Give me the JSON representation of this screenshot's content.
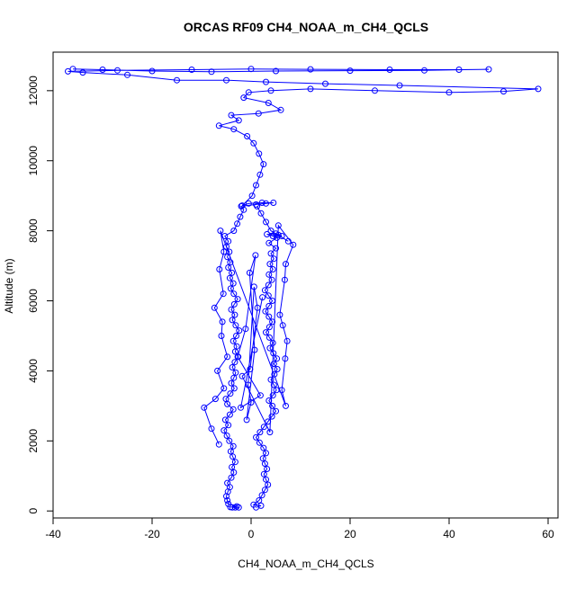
{
  "chart_data": {
    "type": "scatter",
    "title": "ORCAS RF09 CH4_NOAA_m_CH4_QCLS",
    "xlabel": "CH4_NOAA_m_CH4_QCLS",
    "ylabel": "Altitude (m)",
    "xlim": [
      -40,
      62
    ],
    "ylim": [
      -200,
      13100
    ],
    "xticks": [
      -40,
      -20,
      0,
      20,
      40,
      60
    ],
    "xtick_labels": [
      "-40",
      "-20",
      "0",
      "20",
      "40",
      "60"
    ],
    "yticks": [
      0,
      2000,
      4000,
      6000,
      8000,
      10000,
      12000
    ],
    "ytick_labels": [
      "0",
      "2000",
      "4000",
      "6000",
      "8000",
      "10000",
      "12000"
    ],
    "grid": false,
    "legend": "none",
    "series_color": "#0000ff",
    "series": [
      {
        "values": [
          [
            -3.2,
            100
          ],
          [
            -3.8,
            100
          ],
          [
            -2.5,
            100
          ],
          [
            -4.2,
            110
          ],
          [
            -2.9,
            130
          ],
          [
            -4.6,
            200
          ],
          [
            -4.8,
            300
          ],
          [
            -5.0,
            420
          ],
          [
            -4.7,
            550
          ],
          [
            -4.3,
            680
          ],
          [
            -4.8,
            800
          ],
          [
            -4.0,
            950
          ],
          [
            -3.5,
            1100
          ],
          [
            -3.9,
            1250
          ],
          [
            -3.2,
            1400
          ],
          [
            -3.7,
            1550
          ],
          [
            -4.1,
            1700
          ],
          [
            -3.6,
            1850
          ],
          [
            -4.4,
            2000
          ],
          [
            -4.9,
            2150
          ],
          [
            -5.5,
            2300
          ],
          [
            -4.6,
            2450
          ],
          [
            -5.2,
            2600
          ],
          [
            -4.3,
            2750
          ],
          [
            -3.6,
            2900
          ],
          [
            -4.8,
            3050
          ],
          [
            -5.1,
            3200
          ],
          [
            -4.2,
            3350
          ],
          [
            -3.4,
            3500
          ],
          [
            -4.0,
            3650
          ],
          [
            -3.5,
            3800
          ],
          [
            -3.1,
            3950
          ],
          [
            -3.8,
            4100
          ],
          [
            -3.3,
            4250
          ],
          [
            -2.6,
            4400
          ],
          [
            -3.2,
            4550
          ],
          [
            -2.9,
            4700
          ],
          [
            -3.6,
            4850
          ],
          [
            -3.0,
            5000
          ],
          [
            -2.4,
            5150
          ],
          [
            -3.1,
            5300
          ],
          [
            -3.8,
            5450
          ],
          [
            -3.3,
            5600
          ],
          [
            -4.0,
            5750
          ],
          [
            -3.4,
            5900
          ],
          [
            -2.7,
            6050
          ],
          [
            -3.5,
            6200
          ],
          [
            -4.1,
            6350
          ],
          [
            -3.6,
            6500
          ],
          [
            -4.3,
            6650
          ],
          [
            -3.9,
            6800
          ],
          [
            -4.6,
            6950
          ],
          [
            -4.2,
            7100
          ],
          [
            -4.8,
            7250
          ],
          [
            -4.4,
            7400
          ],
          [
            -5.0,
            7550
          ],
          [
            -4.6,
            7700
          ],
          [
            -5.3,
            7850
          ],
          [
            -3.5,
            8000
          ],
          [
            -2.8,
            8200
          ],
          [
            -2.2,
            8400
          ],
          [
            -1.5,
            8600
          ],
          [
            -2.0,
            8700
          ],
          [
            1.0,
            8750
          ],
          [
            3.0,
            8780
          ],
          [
            4.5,
            8800
          ],
          [
            2.2,
            8800
          ],
          [
            -0.5,
            8780
          ],
          [
            -1.8,
            8720
          ],
          [
            0.2,
            9000
          ],
          [
            1.0,
            9300
          ],
          [
            1.8,
            9600
          ],
          [
            2.5,
            9900
          ],
          [
            1.6,
            10200
          ],
          [
            0.5,
            10500
          ],
          [
            -0.8,
            10700
          ],
          [
            -3.5,
            10900
          ],
          [
            -6.5,
            11000
          ],
          [
            -2.5,
            11150
          ],
          [
            -4.0,
            11300
          ],
          [
            1.5,
            11350
          ],
          [
            6.0,
            11450
          ],
          [
            3.5,
            11650
          ],
          [
            -1.5,
            11800
          ],
          [
            -0.5,
            11950
          ],
          [
            4.0,
            12000
          ],
          [
            12.0,
            12050
          ],
          [
            25.0,
            12000
          ],
          [
            40.0,
            11950
          ],
          [
            51.0,
            11980
          ],
          [
            58.0,
            12050
          ],
          [
            30.0,
            12150
          ],
          [
            15.0,
            12200
          ],
          [
            3.0,
            12250
          ],
          [
            -5.0,
            12300
          ],
          [
            -15.0,
            12300
          ],
          [
            -25.0,
            12450
          ],
          [
            -34.0,
            12520
          ],
          [
            -37.0,
            12550
          ],
          [
            -27.0,
            12580
          ],
          [
            -12.0,
            12600
          ],
          [
            0.0,
            12620
          ],
          [
            12.0,
            12610
          ],
          [
            28.0,
            12600
          ],
          [
            42.0,
            12600
          ],
          [
            48.0,
            12610
          ],
          [
            35.0,
            12580
          ],
          [
            20.0,
            12570
          ],
          [
            5.0,
            12560
          ],
          [
            -8.0,
            12540
          ],
          [
            -20.0,
            12560
          ],
          [
            -30.0,
            12600
          ],
          [
            -36.0,
            12620
          ]
        ]
      },
      {
        "values": [
          [
            1.0,
            100
          ],
          [
            2.0,
            150
          ],
          [
            0.5,
            180
          ],
          [
            1.6,
            300
          ],
          [
            2.2,
            450
          ],
          [
            2.8,
            600
          ],
          [
            3.4,
            750
          ],
          [
            3.0,
            900
          ],
          [
            2.6,
            1050
          ],
          [
            3.2,
            1200
          ],
          [
            2.8,
            1350
          ],
          [
            2.4,
            1500
          ],
          [
            3.0,
            1650
          ],
          [
            2.5,
            1800
          ],
          [
            1.7,
            1950
          ],
          [
            1.0,
            2100
          ],
          [
            1.8,
            2250
          ],
          [
            2.6,
            2400
          ],
          [
            3.4,
            2550
          ],
          [
            4.2,
            2700
          ],
          [
            5.0,
            2850
          ],
          [
            4.3,
            3000
          ],
          [
            3.6,
            3150
          ],
          [
            4.4,
            3300
          ],
          [
            5.1,
            3450
          ],
          [
            4.6,
            3600
          ],
          [
            4.0,
            3750
          ],
          [
            4.7,
            3900
          ],
          [
            5.3,
            4050
          ],
          [
            4.6,
            4200
          ],
          [
            5.2,
            4350
          ],
          [
            4.5,
            4500
          ],
          [
            3.8,
            4650
          ],
          [
            4.4,
            4800
          ],
          [
            3.7,
            4950
          ],
          [
            3.0,
            5100
          ],
          [
            3.7,
            5250
          ],
          [
            4.3,
            5400
          ],
          [
            3.6,
            5550
          ],
          [
            2.9,
            5700
          ],
          [
            3.6,
            5850
          ],
          [
            4.3,
            6000
          ],
          [
            3.5,
            6150
          ],
          [
            2.8,
            6300
          ],
          [
            3.5,
            6450
          ],
          [
            4.2,
            6600
          ],
          [
            3.6,
            6750
          ],
          [
            4.4,
            6900
          ],
          [
            3.8,
            7050
          ],
          [
            4.6,
            7200
          ],
          [
            4.0,
            7350
          ],
          [
            5.0,
            7500
          ],
          [
            3.6,
            7650
          ],
          [
            5.2,
            7800
          ],
          [
            4.4,
            7850
          ],
          [
            3.2,
            7900
          ],
          [
            5.5,
            7880
          ],
          [
            6.2,
            7850
          ],
          [
            5.0,
            7920
          ],
          [
            7.5,
            7700
          ],
          [
            4.0,
            8000
          ],
          [
            3.0,
            8250
          ],
          [
            2.0,
            8500
          ],
          [
            1.2,
            8700
          ]
        ]
      },
      {
        "values": [
          [
            -6.5,
            1900
          ],
          [
            -8.0,
            2350
          ],
          [
            -9.5,
            2950
          ],
          [
            -7.2,
            3200
          ],
          [
            -5.5,
            3500
          ],
          [
            -6.8,
            4000
          ],
          [
            -4.8,
            4400
          ],
          [
            -6.0,
            5000
          ],
          [
            -5.8,
            5400
          ],
          [
            -7.4,
            5800
          ],
          [
            -5.6,
            6200
          ],
          [
            -6.4,
            6900
          ],
          [
            -5.5,
            7400
          ],
          [
            -6.2,
            8000
          ],
          [
            7.0,
            3000
          ],
          [
            6.2,
            3450
          ],
          [
            6.9,
            4350
          ],
          [
            7.3,
            4850
          ],
          [
            6.4,
            5300
          ],
          [
            5.8,
            5600
          ],
          [
            6.8,
            6600
          ],
          [
            7.0,
            7050
          ],
          [
            8.5,
            7600
          ],
          [
            5.5,
            8150
          ],
          [
            3.8,
            2250
          ],
          [
            -1.8,
            3850
          ],
          [
            -0.2,
            4050
          ],
          [
            1.3,
            5800
          ],
          [
            0.6,
            6400
          ],
          [
            -0.6,
            3600
          ],
          [
            0.0,
            3100
          ],
          [
            -0.9,
            2600
          ],
          [
            0.7,
            4600
          ],
          [
            -0.3,
            6800
          ],
          [
            0.9,
            7300
          ],
          [
            -1.1,
            5200
          ],
          [
            -2.7,
            4400
          ],
          [
            1.9,
            3300
          ],
          [
            -2.1,
            2950
          ],
          [
            2.3,
            6100
          ]
        ]
      }
    ]
  }
}
